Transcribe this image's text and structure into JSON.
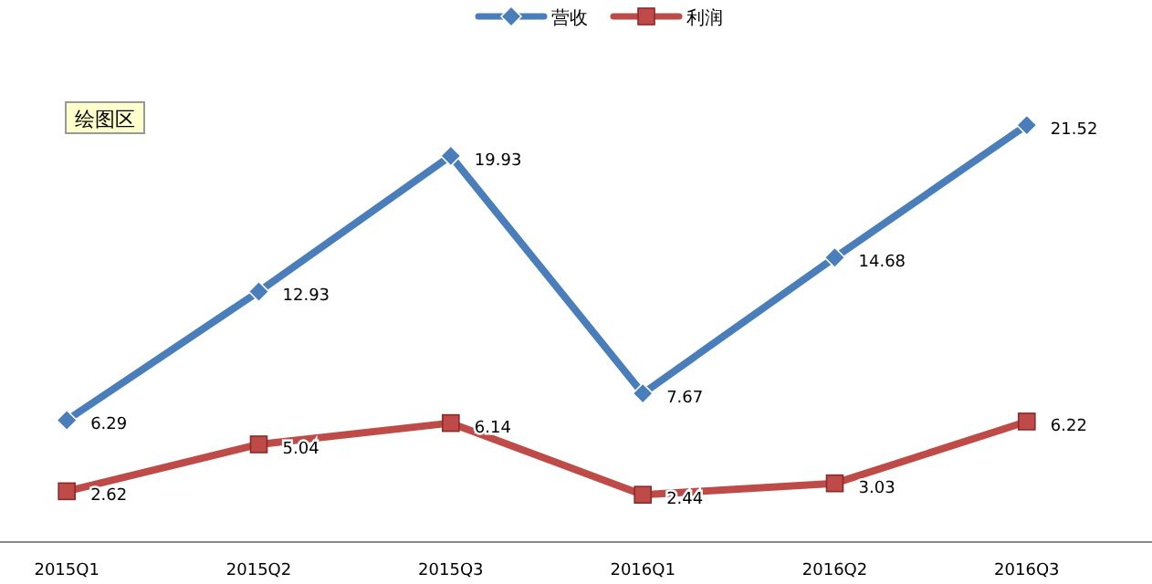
{
  "chart_data": {
    "type": "line",
    "categories": [
      "2015Q1",
      "2015Q2",
      "2015Q3",
      "2016Q1",
      "2016Q2",
      "2016Q3"
    ],
    "series": [
      {
        "name": "营收",
        "color": "#4a7ebb",
        "marker": "diamond",
        "values": [
          6.29,
          12.93,
          19.93,
          7.67,
          14.68,
          21.52
        ]
      },
      {
        "name": "利润",
        "color": "#be4b48",
        "marker": "square",
        "values": [
          2.62,
          5.04,
          6.14,
          2.44,
          3.03,
          6.22
        ]
      }
    ],
    "data_labels": true,
    "legend": "top",
    "annotations": [
      "绘图区"
    ]
  }
}
